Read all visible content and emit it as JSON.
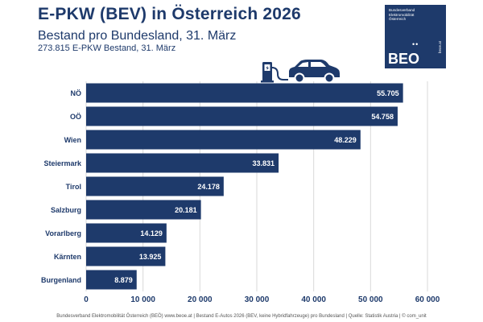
{
  "header": {
    "title": "E-PKW (BEV) in Österreich 2026",
    "subtitle": "Bestand pro Bundesland, 31. März",
    "subtitle2": "273.815 E-PKW Bestand, 31. März"
  },
  "logo": {
    "org_line1": "Bundesverband",
    "org_line2": "Elektromobilität",
    "org_line3": "Österreich",
    "dots": "••",
    "abbr": "BEO",
    "url": "beoe.at"
  },
  "icons": [
    "ev-charger-icon",
    "car-icon"
  ],
  "colors": {
    "bar": "#1e3a6b",
    "text": "#1e3a6b",
    "grid": "#d9d9d9"
  },
  "chart_data": {
    "type": "bar",
    "orientation": "horizontal",
    "categories": [
      "NÖ",
      "OÖ",
      "Wien",
      "Steiermark",
      "Tirol",
      "Salzburg",
      "Vorarlberg",
      "Kärnten",
      "Burgenland"
    ],
    "values": [
      55705,
      54758,
      48229,
      33831,
      24178,
      20181,
      14129,
      13925,
      8879
    ],
    "value_labels": [
      "55.705",
      "54.758",
      "48.229",
      "33.831",
      "24.178",
      "20.181",
      "14.129",
      "13.925",
      "8.879"
    ],
    "xlim": [
      0,
      60000
    ],
    "xticks": [
      0,
      10000,
      20000,
      30000,
      40000,
      50000,
      60000
    ],
    "xtick_labels": [
      "0",
      "10 000",
      "20 000",
      "30 000",
      "40 000",
      "50 000",
      "60 000"
    ],
    "grid": true
  },
  "footer": "Bundesverband Elektromobilität Österreich (BEÖ) www.beoe.at | Bestand E-Autos 2026 (BEV, keine Hybridfahrzeuge) pro Bundesland | Quelle: Statistik Austria | © com_unit"
}
